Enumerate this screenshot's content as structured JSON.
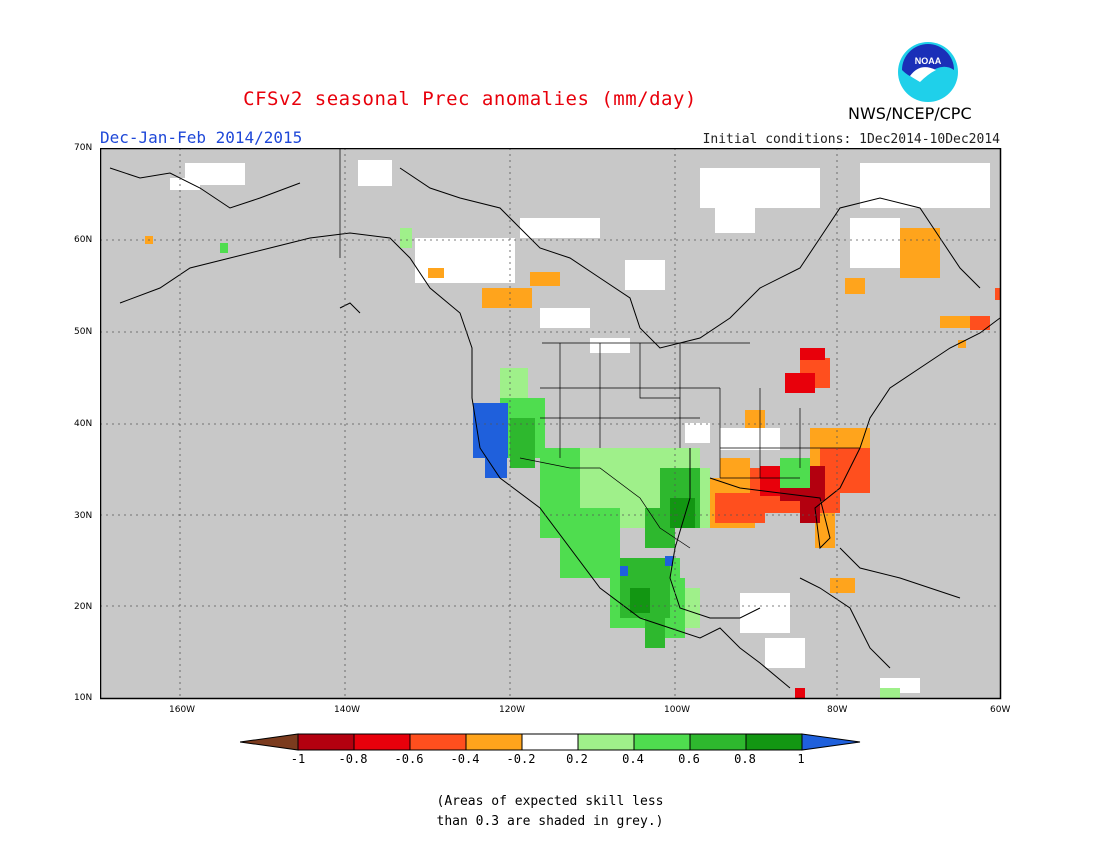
{
  "title": "CFSv2 seasonal Prec anomalies (mm/day)",
  "season": "Dec-Jan-Feb 2014/2015",
  "initial_conditions": "Initial conditions: 1Dec2014-10Dec2014",
  "agency": "NWS/NCEP/CPC",
  "logo_text": "NOAA",
  "lat_labels": [
    "70N",
    "60N",
    "50N",
    "40N",
    "30N",
    "20N",
    "10N"
  ],
  "lon_labels": [
    "160W",
    "140W",
    "120W",
    "100W",
    "80W",
    "60W"
  ],
  "colorbar": {
    "labels": [
      "-1",
      "-0.8",
      "-0.6",
      "-0.4",
      "-0.2",
      "0.2",
      "0.4",
      "0.6",
      "0.8",
      "1"
    ],
    "colors": [
      "#7b3b1e",
      "#b3000f",
      "#e8000b",
      "#ff4f1e",
      "#ffa41c",
      "#ffffff",
      "#9ff08a",
      "#4fdd4f",
      "#2eb82e",
      "#129612",
      "#1f60dc"
    ]
  },
  "note": [
    "(Areas of expected skill less",
    "than 0.3 are shaded in grey.)"
  ],
  "colors": {
    "grey": "#c8c8c8",
    "title_red": "#e8000b",
    "season_blue": "#1f48d8"
  }
}
